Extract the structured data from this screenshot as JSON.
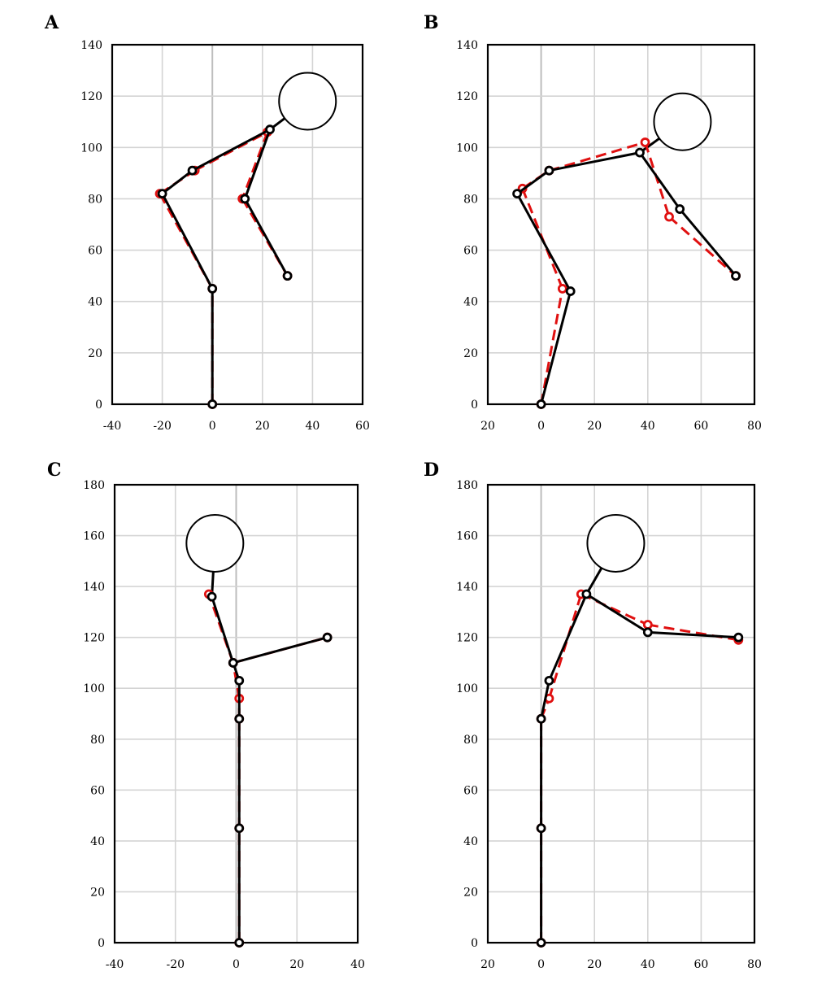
{
  "chart_data": [
    {
      "panel": "A",
      "type": "scatter",
      "xticks": [
        "-40",
        "-20",
        "0",
        "20",
        "40",
        "60"
      ],
      "yticks": [
        "0",
        "20",
        "40",
        "60",
        "80",
        "100",
        "120",
        "140"
      ],
      "xlim": [
        -40,
        60
      ],
      "ylim": [
        0,
        140
      ],
      "grid": true,
      "series": [
        {
          "style": "dashed-red",
          "color": "#e01010",
          "x": [
            0,
            0,
            -21,
            -7,
            22,
            12,
            30
          ],
          "y": [
            0,
            45,
            82,
            91,
            106,
            80,
            50
          ]
        },
        {
          "style": "solid-black",
          "color": "#000000",
          "x": [
            0,
            0,
            -20,
            -8,
            23,
            13,
            30
          ],
          "y": [
            0,
            45,
            82,
            91,
            107,
            80,
            50
          ]
        }
      ],
      "segments": [
        [
          0,
          1
        ],
        [
          1,
          2
        ],
        [
          2,
          3
        ],
        [
          3,
          4
        ],
        [
          4,
          5
        ],
        [
          5,
          6
        ]
      ],
      "head": {
        "x": 38,
        "y": 118,
        "attached_to": 4
      }
    },
    {
      "panel": "B",
      "type": "scatter",
      "xticks": [
        "20",
        "0",
        "20",
        "40",
        "60",
        "80"
      ],
      "yticks": [
        "0",
        "20",
        "40",
        "60",
        "80",
        "100",
        "120",
        "140"
      ],
      "xlim": [
        -20,
        80
      ],
      "ylim": [
        0,
        140
      ],
      "grid": true,
      "series": [
        {
          "style": "dashed-red",
          "color": "#e01010",
          "x": [
            0,
            8,
            -7,
            3,
            39,
            48,
            73
          ],
          "y": [
            0,
            45,
            84,
            91,
            102,
            73,
            50
          ]
        },
        {
          "style": "solid-black",
          "color": "#000000",
          "x": [
            0,
            11,
            -9,
            3,
            37,
            52,
            73
          ],
          "y": [
            0,
            44,
            82,
            91,
            98,
            76,
            50
          ]
        }
      ],
      "segments": [
        [
          0,
          1
        ],
        [
          1,
          2
        ],
        [
          2,
          3
        ],
        [
          3,
          4
        ],
        [
          4,
          5
        ],
        [
          5,
          6
        ]
      ],
      "head": {
        "x": 53,
        "y": 110,
        "attached_to": 4
      }
    },
    {
      "panel": "C",
      "type": "scatter",
      "xticks": [
        "-40",
        "-20",
        "0",
        "20",
        "40"
      ],
      "yticks": [
        "0",
        "20",
        "40",
        "60",
        "80",
        "100",
        "120",
        "140",
        "160",
        "180"
      ],
      "xlim": [
        -40,
        40
      ],
      "ylim": [
        0,
        180
      ],
      "grid": true,
      "series": [
        {
          "style": "dashed-red",
          "color": "#e01010",
          "x": [
            1,
            1,
            1,
            1,
            -1,
            -9,
            30
          ],
          "y": [
            0,
            45,
            88,
            96,
            110,
            137,
            120
          ]
        },
        {
          "style": "solid-black",
          "color": "#000000",
          "x": [
            1,
            1,
            1,
            1,
            -1,
            -8,
            30
          ],
          "y": [
            0,
            45,
            88,
            103,
            110,
            136,
            120
          ]
        }
      ],
      "segments": [
        [
          0,
          1
        ],
        [
          1,
          2
        ],
        [
          2,
          3
        ],
        [
          3,
          4
        ],
        [
          4,
          5
        ],
        [
          4,
          6
        ]
      ],
      "head": {
        "x": -7,
        "y": 157,
        "attached_to": 5
      }
    },
    {
      "panel": "D",
      "type": "scatter",
      "xticks": [
        "20",
        "0",
        "20",
        "40",
        "60",
        "80"
      ],
      "yticks": [
        "0",
        "20",
        "40",
        "60",
        "80",
        "100",
        "120",
        "140",
        "160",
        "180"
      ],
      "xlim": [
        -20,
        80
      ],
      "ylim": [
        0,
        180
      ],
      "grid": true,
      "series": [
        {
          "style": "dashed-red",
          "color": "#e01010",
          "x": [
            0,
            0,
            0,
            3,
            15,
            40,
            74
          ],
          "y": [
            0,
            45,
            88,
            96,
            137,
            125,
            119
          ]
        },
        {
          "style": "solid-black",
          "color": "#000000",
          "x": [
            0,
            0,
            0,
            3,
            17,
            40,
            74
          ],
          "y": [
            0,
            45,
            88,
            103,
            137,
            122,
            120
          ]
        }
      ],
      "segments": [
        [
          0,
          1
        ],
        [
          1,
          2
        ],
        [
          2,
          3
        ],
        [
          3,
          4
        ],
        [
          4,
          5
        ],
        [
          5,
          6
        ]
      ],
      "head": {
        "x": 28,
        "y": 157,
        "attached_to": 4
      }
    }
  ]
}
